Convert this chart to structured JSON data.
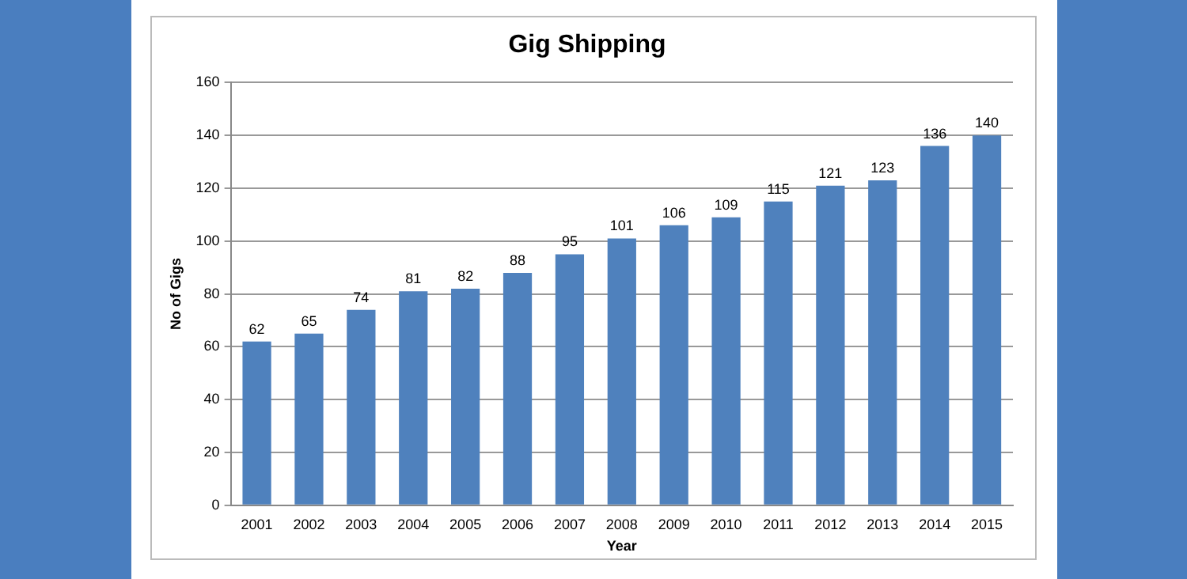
{
  "chart_data": {
    "type": "bar",
    "title": "Gig Shipping",
    "xlabel": "Year",
    "ylabel": "No of Gigs",
    "categories": [
      "2001",
      "2002",
      "2003",
      "2004",
      "2005",
      "2006",
      "2007",
      "2008",
      "2009",
      "2010",
      "2011",
      "2012",
      "2013",
      "2014",
      "2015"
    ],
    "values": [
      62,
      65,
      74,
      81,
      82,
      88,
      95,
      101,
      106,
      109,
      115,
      121,
      123,
      136,
      140
    ],
    "color": "#4f81bd",
    "ylim": [
      0,
      160
    ],
    "yticks": [
      0,
      20,
      40,
      60,
      80,
      100,
      120,
      140,
      160
    ],
    "grid": "y",
    "legend": false,
    "data_labels": true
  }
}
